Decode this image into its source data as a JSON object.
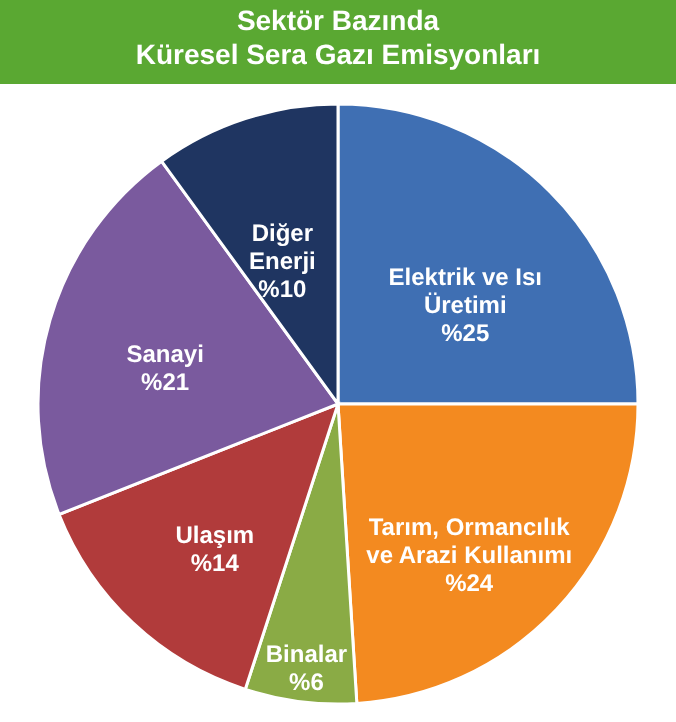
{
  "chart_data": {
    "type": "pie",
    "title": "Sektör Bazında\nKüresel Sera Gazı Emisyonları",
    "categories": [
      "Elektrik ve Isı\nÜretimi",
      "Tarım, Ormancılık\nve Arazi Kullanımı",
      "Binalar",
      "Ulaşım",
      "Sanayi",
      "Diğer\nEnerji"
    ],
    "values": [
      25,
      24,
      6,
      14,
      21,
      10
    ],
    "value_labels": [
      "%25",
      "%24",
      "%6",
      "%14",
      "%21",
      "%10"
    ],
    "colors": [
      "#3f6fb3",
      "#f38a20",
      "#8aab45",
      "#b13b3b",
      "#7a5a9e",
      "#1f3561"
    ],
    "legend": false
  }
}
